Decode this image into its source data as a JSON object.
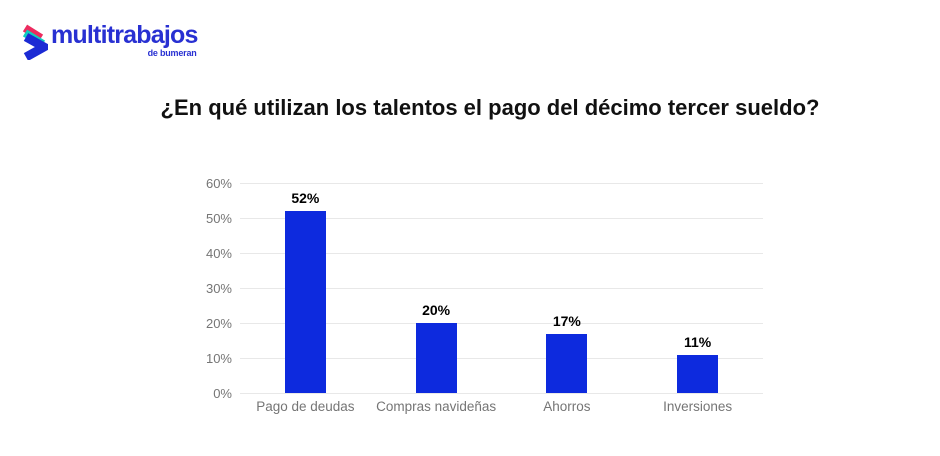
{
  "logo": {
    "brand": "multitrabajos",
    "sub": "de bumeran",
    "colors": {
      "brand_text": "#2830d2",
      "icon_blue": "#1b2ad4",
      "icon_teal": "#10cdbf",
      "icon_pink": "#ed2b5f"
    }
  },
  "title": "¿En qué utilizan los talentos el pago del décimo tercer sueldo?",
  "chart_data": {
    "type": "bar",
    "title": "¿En qué utilizan los talentos el pago del décimo tercer sueldo?",
    "categories": [
      "Pago de deudas",
      "Compras navideñas",
      "Ahorros",
      "Inversiones"
    ],
    "values": [
      52,
      20,
      17,
      11
    ],
    "value_labels": [
      "52%",
      "20%",
      "17%",
      "11%"
    ],
    "y_ticks": [
      0,
      10,
      20,
      30,
      40,
      50,
      60
    ],
    "y_tick_labels": [
      "0%",
      "10%",
      "20%",
      "30%",
      "40%",
      "50%",
      "60%"
    ],
    "ylim": [
      0,
      60
    ],
    "xlabel": "",
    "ylabel": "",
    "legend": "none",
    "grid": "horizontal",
    "bar_color": "#0d2ade",
    "grid_color": "#e8e8e8",
    "axis_text_color": "#757575"
  }
}
